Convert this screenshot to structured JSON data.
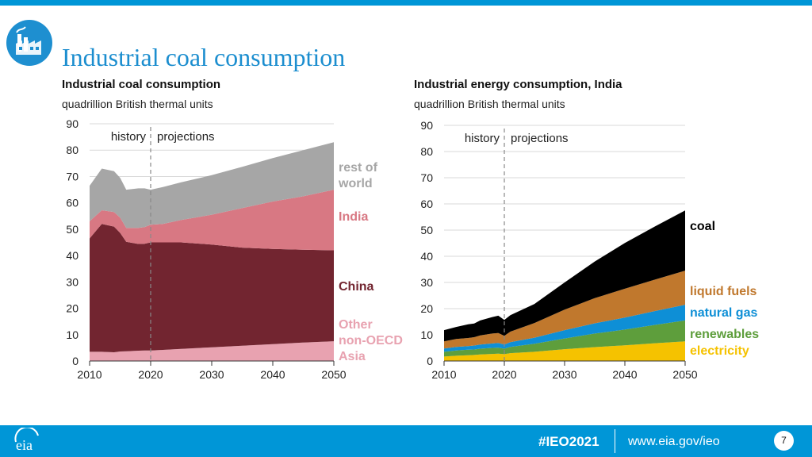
{
  "page": {
    "title": "Industrial coal consumption",
    "footer_hashtag": "#IEO2021",
    "footer_url": "www.eia.gov/ieo",
    "page_number": "7",
    "logo_text": "eia",
    "accent_color": "#0096d7"
  },
  "chart_data": [
    {
      "type": "area",
      "stacked": true,
      "title": "Industrial coal consumption",
      "subtitle": "quadrillion British thermal units",
      "ylim": [
        0,
        90
      ],
      "yticks": [
        0,
        10,
        20,
        30,
        40,
        50,
        60,
        70,
        80,
        90
      ],
      "xlim": [
        2010,
        2050
      ],
      "xticks": [
        2010,
        2020,
        2030,
        2040,
        2050
      ],
      "divider_year": 2020,
      "history_label": "history",
      "projections_label": "projections",
      "x": [
        2010,
        2012,
        2014,
        2015,
        2016,
        2018,
        2019,
        2020,
        2022,
        2025,
        2030,
        2035,
        2040,
        2045,
        2050
      ],
      "series": [
        {
          "name": "Other non-OECD Asia",
          "label_lines": [
            "Other",
            "non-OECD",
            "Asia"
          ],
          "color": "#e8a2b0",
          "label_color": "#e8a2b0",
          "values": [
            3.5,
            3.5,
            3.3,
            3.6,
            3.7,
            3.9,
            4.0,
            4.0,
            4.2,
            4.6,
            5.2,
            5.8,
            6.4,
            7.0,
            7.5
          ]
        },
        {
          "name": "China",
          "label_lines": [
            "China"
          ],
          "color": "#722530",
          "label_color": "#722530",
          "values": [
            43.0,
            48.5,
            47.7,
            45.0,
            41.5,
            40.5,
            40.5,
            41.0,
            40.8,
            40.4,
            39.0,
            37.2,
            36.1,
            35.2,
            34.5
          ]
        },
        {
          "name": "India",
          "label_lines": [
            "India"
          ],
          "color": "#d87883",
          "label_color": "#d87883",
          "values": [
            6.5,
            5.2,
            5.5,
            5.8,
            5.3,
            6.1,
            6.3,
            6.7,
            7.0,
            8.5,
            11.3,
            15.0,
            18.0,
            20.3,
            23.0
          ]
        },
        {
          "name": "rest of world",
          "label_lines": [
            "rest of",
            "world"
          ],
          "color": "#a6a6a6",
          "label_color": "#a6a6a6",
          "values": [
            13.5,
            15.8,
            15.5,
            15.1,
            14.5,
            15.0,
            14.7,
            13.3,
            14.0,
            14.3,
            15.0,
            15.7,
            16.5,
            17.5,
            18.0
          ]
        }
      ]
    },
    {
      "type": "area",
      "stacked": true,
      "title": "Industrial energy consumption, India",
      "subtitle": "quadrillion British thermal units",
      "ylim": [
        0,
        90
      ],
      "yticks": [
        0,
        10,
        20,
        30,
        40,
        50,
        60,
        70,
        80,
        90
      ],
      "xlim": [
        2010,
        2050
      ],
      "xticks": [
        2010,
        2020,
        2030,
        2040,
        2050
      ],
      "divider_year": 2020,
      "history_label": "history",
      "projections_label": "projections",
      "x": [
        2010,
        2012,
        2014,
        2015,
        2016,
        2018,
        2019,
        2020,
        2021,
        2025,
        2030,
        2035,
        2040,
        2045,
        2050
      ],
      "series": [
        {
          "name": "electricity",
          "label_lines": [
            "electricity"
          ],
          "color": "#f5c200",
          "label_color": "#f5c200",
          "values": [
            1.7,
            2.0,
            2.2,
            2.3,
            2.5,
            2.7,
            2.8,
            2.6,
            3.0,
            3.5,
            4.5,
            5.3,
            6.0,
            6.8,
            7.5
          ]
        },
        {
          "name": "renewables",
          "label_lines": [
            "renewables"
          ],
          "color": "#5e9e3c",
          "label_color": "#5e9e3c",
          "values": [
            1.8,
            2.0,
            2.1,
            2.1,
            2.2,
            2.3,
            2.3,
            2.1,
            2.4,
            3.1,
            4.1,
            5.2,
            6.0,
            7.0,
            8.0
          ]
        },
        {
          "name": "natural gas",
          "label_lines": [
            "natural gas"
          ],
          "color": "#0e8fd6",
          "label_color": "#0e8fd6",
          "values": [
            1.3,
            1.4,
            1.4,
            1.5,
            1.6,
            1.7,
            1.8,
            1.6,
            1.8,
            2.3,
            3.2,
            3.9,
            4.6,
            5.3,
            6.0
          ]
        },
        {
          "name": "liquid fuels",
          "label_lines": [
            "liquid fuels"
          ],
          "color": "#c0782d",
          "label_color": "#c0782d",
          "values": [
            2.7,
            3.0,
            3.1,
            3.2,
            3.5,
            3.8,
            3.8,
            3.3,
            4.0,
            5.6,
            7.8,
            9.6,
            11.0,
            12.0,
            13.0
          ]
        },
        {
          "name": "coal",
          "label_lines": [
            "coal"
          ],
          "color": "#000000",
          "label_color": "#000000",
          "values": [
            4.3,
            4.6,
            5.2,
            5.2,
            5.7,
            6.3,
            6.6,
            6.1,
            6.3,
            7.3,
            10.4,
            14.0,
            17.5,
            20.3,
            23.0
          ]
        }
      ]
    }
  ]
}
